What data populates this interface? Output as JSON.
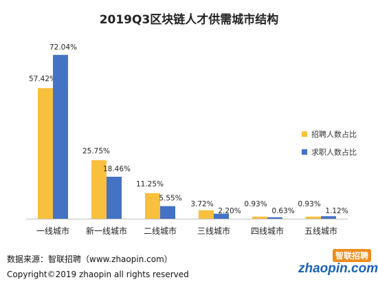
{
  "chart_data": {
    "type": "bar",
    "title": "2019Q3区块链人才供需城市结构",
    "categories": [
      "一线城市",
      "新一线城市",
      "二线城市",
      "三线城市",
      "四线城市",
      "五线城市"
    ],
    "series": [
      {
        "name": "招聘人数占比",
        "color": "#f8c03c",
        "values": [
          57.42,
          25.75,
          11.25,
          3.72,
          0.93,
          0.93
        ],
        "labels": [
          "57.42%",
          "25.75%",
          "11.25%",
          "3.72%",
          "0.93%",
          "0.93%"
        ]
      },
      {
        "name": "求职人数占比",
        "color": "#4472c4",
        "values": [
          72.04,
          18.46,
          5.55,
          2.2,
          0.63,
          1.12
        ],
        "labels": [
          "72.04%",
          "18.46%",
          "5.55%",
          "2.20%",
          "0.63%",
          "1.12%"
        ]
      }
    ],
    "ylim": [
      0,
      75
    ],
    "grid": false,
    "legend": "right"
  },
  "footer": {
    "source": "数据来源：智联招聘（www.zhaopin.com）",
    "copyright": "Copyright©2019 zhaopin all rights reserved"
  },
  "logo": {
    "top_text": "智联招聘",
    "word": "zhaopin.com"
  },
  "colors": {
    "recruit": "#f8c03c",
    "seek": "#4472c4",
    "axis": "#bfbfbf"
  }
}
